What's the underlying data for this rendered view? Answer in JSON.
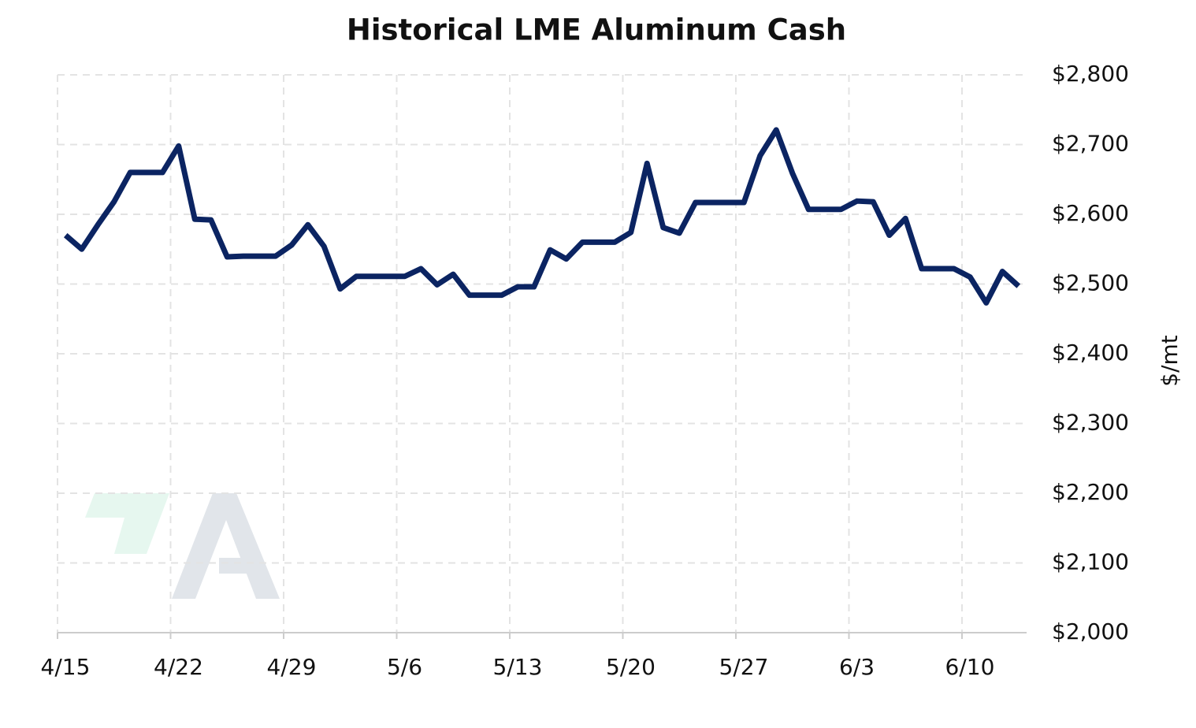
{
  "chart_data": {
    "type": "line",
    "title": "Historical LME Aluminum Cash",
    "y_label": "$/mt",
    "x": [
      "4/15",
      "4/16",
      "4/17",
      "4/18",
      "4/19",
      "4/20",
      "4/21",
      "4/22",
      "4/23",
      "4/24",
      "4/25",
      "4/26",
      "4/27",
      "4/28",
      "4/29",
      "4/30",
      "5/1",
      "5/2",
      "5/3",
      "5/4",
      "5/5",
      "5/6",
      "5/7",
      "5/8",
      "5/9",
      "5/10",
      "5/11",
      "5/12",
      "5/13",
      "5/14",
      "5/15",
      "5/16",
      "5/17",
      "5/18",
      "5/19",
      "5/20",
      "5/21",
      "5/22",
      "5/23",
      "5/24",
      "5/25",
      "5/26",
      "5/27",
      "5/28",
      "5/29",
      "5/30",
      "5/31",
      "6/1",
      "6/2",
      "6/3",
      "6/4",
      "6/5",
      "6/6",
      "6/7",
      "6/8",
      "6/9",
      "6/10",
      "6/11",
      "6/12",
      "6/13"
    ],
    "series": [
      {
        "name": "LME Aluminum Cash",
        "color": "#0b2462",
        "values": [
          2570,
          2550,
          2585,
          2618,
          2660,
          2660,
          2660,
          2698,
          2593,
          2592,
          2539,
          2540,
          2540,
          2540,
          2556,
          2585,
          2554,
          2493,
          2511,
          2511,
          2511,
          2511,
          2522,
          2499,
          2514,
          2484,
          2484,
          2484,
          2496,
          2496,
          2549,
          2536,
          2560,
          2560,
          2560,
          2574,
          2673,
          2581,
          2573,
          2617,
          2617,
          2617,
          2617,
          2684,
          2721,
          2659,
          2607,
          2607,
          2607,
          2619,
          2618,
          2570,
          2594,
          2522,
          2522,
          2522,
          2510,
          2473,
          2518,
          2497
        ]
      }
    ],
    "xlim": [
      "4/15",
      "6/13"
    ],
    "xticks": [
      "4/15",
      "4/22",
      "4/29",
      "5/6",
      "5/13",
      "5/20",
      "5/27",
      "6/3",
      "6/10"
    ],
    "ylim": [
      2000,
      2800
    ],
    "yticks": [
      {
        "value": 2000,
        "label": "$2,000"
      },
      {
        "value": 2100,
        "label": "$2,100"
      },
      {
        "value": 2200,
        "label": "$2,200"
      },
      {
        "value": 2300,
        "label": "$2,300"
      },
      {
        "value": 2400,
        "label": "$2,400"
      },
      {
        "value": 2500,
        "label": "$2,500"
      },
      {
        "value": 2600,
        "label": "$2,600"
      },
      {
        "value": 2700,
        "label": "$2,700"
      },
      {
        "value": 2800,
        "label": "$2,800"
      }
    ],
    "grid": true
  }
}
